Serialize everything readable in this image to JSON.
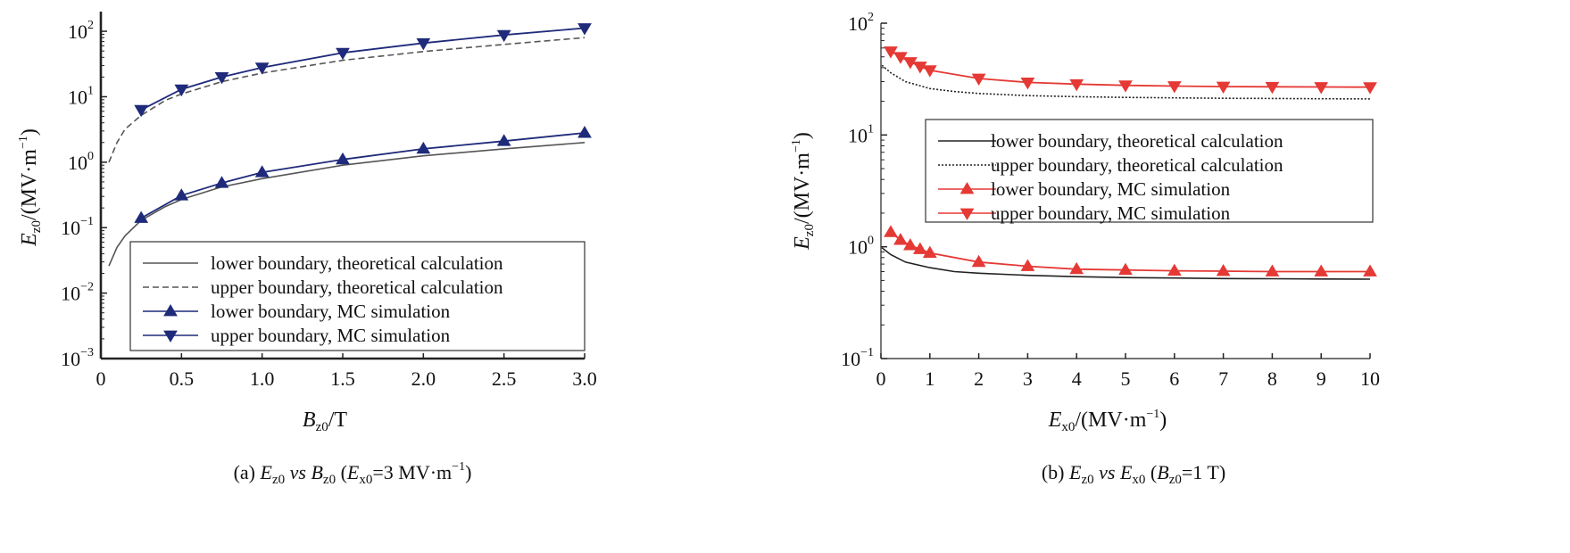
{
  "chart_data": [
    {
      "type": "line",
      "panel": "a",
      "caption": {
        "prefix": "(a) ",
        "var1": "E",
        "sub1": "z0",
        "vs": " vs ",
        "var2": "B",
        "sub2": "z0",
        "cond_open": " (",
        "cond_var": "E",
        "cond_sub": "x0",
        "cond_rest": "=3 MV·m",
        "cond_sup": "−1",
        "cond_close": ")"
      },
      "xlabel": {
        "var": "B",
        "sub": "z0",
        "rest": "/T"
      },
      "ylabel": {
        "var": "E",
        "sub": "z0",
        "rest": "/(MV·m",
        "sup": "−1",
        "close": ")"
      },
      "xlim": [
        0,
        3.0
      ],
      "ylim": [
        0.001,
        200
      ],
      "yscale": "log",
      "x_ticks": [
        "0",
        "0.5",
        "1.0",
        "1.5",
        "2.0",
        "2.5",
        "3.0"
      ],
      "x_tick_values": [
        0,
        0.5,
        1.0,
        1.5,
        2.0,
        2.5,
        3.0
      ],
      "y_ticks": [
        {
          "value": 0.001,
          "base": "10",
          "exp": "−3"
        },
        {
          "value": 0.01,
          "base": "10",
          "exp": "−2"
        },
        {
          "value": 0.1,
          "base": "10",
          "exp": "−1"
        },
        {
          "value": 1,
          "base": "10",
          "exp": "0"
        },
        {
          "value": 10,
          "base": "10",
          "exp": "1"
        },
        {
          "value": 100,
          "base": "10",
          "exp": "2"
        }
      ],
      "legend_position": "bottom-right",
      "series": [
        {
          "name": "lower boundary, theoretical calculation",
          "style": "solid",
          "color": "#555555",
          "marker": "none",
          "x": [
            0.05,
            0.1,
            0.15,
            0.25,
            0.4,
            0.5,
            0.75,
            1.0,
            1.5,
            2.0,
            2.5,
            3.0
          ],
          "y": [
            0.026,
            0.05,
            0.075,
            0.13,
            0.21,
            0.27,
            0.42,
            0.56,
            0.9,
            1.25,
            1.6,
            2.0
          ]
        },
        {
          "name": "upper boundary, theoretical calculation",
          "style": "dashed",
          "color": "#555555",
          "marker": "none",
          "x": [
            0.05,
            0.1,
            0.15,
            0.25,
            0.4,
            0.5,
            0.75,
            1.0,
            1.5,
            2.0,
            2.5,
            3.0
          ],
          "y": [
            1.0,
            2.0,
            3.2,
            5.2,
            8.8,
            11.0,
            17.0,
            23.0,
            36.0,
            49.0,
            63.0,
            80.0
          ]
        },
        {
          "name": "lower boundary, MC simulation",
          "style": "solid",
          "color": "#1f2a7a",
          "marker": "triangle-up",
          "x": [
            0.25,
            0.5,
            0.75,
            1.0,
            1.5,
            2.0,
            2.5,
            3.0
          ],
          "y": [
            0.14,
            0.31,
            0.48,
            0.7,
            1.1,
            1.6,
            2.1,
            2.8
          ]
        },
        {
          "name": "upper boundary, MC simulation",
          "style": "solid",
          "color": "#1f2a7a",
          "marker": "triangle-down",
          "x": [
            0.25,
            0.5,
            0.75,
            1.0,
            1.5,
            2.0,
            2.5,
            3.0
          ],
          "y": [
            6.3,
            13.0,
            20.0,
            28.0,
            47.0,
            66.0,
            88.0,
            112.0
          ]
        }
      ]
    },
    {
      "type": "line",
      "panel": "b",
      "caption": {
        "prefix": "(b) ",
        "var1": "E",
        "sub1": "z0",
        "vs": " vs ",
        "var2": "E",
        "sub2": "x0",
        "cond_open": " (",
        "cond_var": "B",
        "cond_sub": "z0",
        "cond_rest": "=1 T",
        "cond_sup": "",
        "cond_close": ")"
      },
      "xlabel": {
        "var": "E",
        "sub": "x0",
        "rest": "/(MV·m",
        "sup": "−1",
        "close": ")"
      },
      "ylabel": {
        "var": "E",
        "sub": "z0",
        "rest": "/(MV·m",
        "sup": "−1",
        "close": ")"
      },
      "xlim": [
        0,
        10
      ],
      "ylim": [
        0.1,
        100
      ],
      "yscale": "log",
      "x_ticks": [
        "0",
        "1",
        "2",
        "3",
        "4",
        "5",
        "6",
        "7",
        "8",
        "9",
        "10"
      ],
      "x_tick_values": [
        0,
        1,
        2,
        3,
        4,
        5,
        6,
        7,
        8,
        9,
        10
      ],
      "y_ticks": [
        {
          "value": 0.1,
          "base": "10",
          "exp": "−1"
        },
        {
          "value": 1,
          "base": "10",
          "exp": "0"
        },
        {
          "value": 10,
          "base": "10",
          "exp": "1"
        },
        {
          "value": 100,
          "base": "10",
          "exp": "2"
        }
      ],
      "legend_position": "center-right",
      "series": [
        {
          "name": "lower boundary, theoretical calculation",
          "style": "solid",
          "color": "#222222",
          "marker": "none",
          "x": [
            0.02,
            0.2,
            0.5,
            1,
            1.5,
            2,
            3,
            4,
            5,
            6,
            7,
            8,
            9,
            10
          ],
          "y": [
            0.98,
            0.85,
            0.73,
            0.65,
            0.6,
            0.58,
            0.555,
            0.54,
            0.53,
            0.525,
            0.52,
            0.518,
            0.515,
            0.513
          ]
        },
        {
          "name": "upper boundary, theoretical calculation",
          "style": "dotted",
          "color": "#222222",
          "marker": "none",
          "x": [
            0.02,
            0.2,
            0.5,
            1,
            1.5,
            2,
            3,
            4,
            5,
            6,
            7,
            8,
            9,
            10
          ],
          "y": [
            42.0,
            36.0,
            30.0,
            26.0,
            24.5,
            23.5,
            22.5,
            22.0,
            21.7,
            21.5,
            21.3,
            21.2,
            21.1,
            21.0
          ]
        },
        {
          "name": "lower boundary, MC simulation",
          "style": "solid",
          "color": "#e53935",
          "marker": "triangle-up",
          "x": [
            0.2,
            0.4,
            0.6,
            0.8,
            1,
            2,
            3,
            4,
            5,
            6,
            7,
            8,
            9,
            10
          ],
          "y": [
            1.35,
            1.15,
            1.03,
            0.95,
            0.88,
            0.73,
            0.67,
            0.63,
            0.62,
            0.61,
            0.605,
            0.6,
            0.6,
            0.6
          ]
        },
        {
          "name": "upper boundary, MC simulation",
          "style": "solid",
          "color": "#e53935",
          "marker": "triangle-down",
          "x": [
            0.2,
            0.4,
            0.6,
            0.8,
            1,
            2,
            3,
            4,
            5,
            6,
            7,
            8,
            9,
            10
          ],
          "y": [
            56.0,
            50.0,
            45.0,
            41.0,
            38.0,
            32.0,
            29.5,
            28.5,
            27.8,
            27.4,
            27.1,
            27.0,
            26.9,
            26.8
          ]
        }
      ]
    }
  ]
}
